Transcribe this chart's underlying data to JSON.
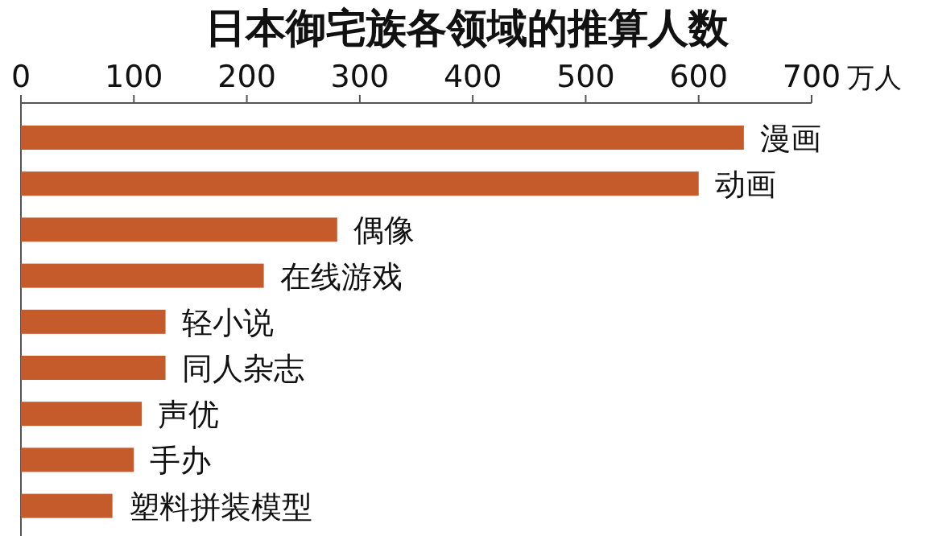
{
  "chart_data": {
    "type": "bar",
    "orientation": "horizontal",
    "title": "日本御宅族各领域的推算人数",
    "xlabel": "万人",
    "categories": [
      "漫画",
      "动画",
      "偶像",
      "在线游戏",
      "轻小说",
      "同人杂志",
      "声优",
      "手办",
      "塑料拼装模型"
    ],
    "values": [
      640,
      600,
      280,
      215,
      128,
      128,
      107,
      100,
      81
    ],
    "color": "#c55a2a",
    "xlim": [
      0,
      700
    ],
    "xticks": [
      0,
      100,
      200,
      300,
      400,
      500,
      600,
      700
    ]
  }
}
